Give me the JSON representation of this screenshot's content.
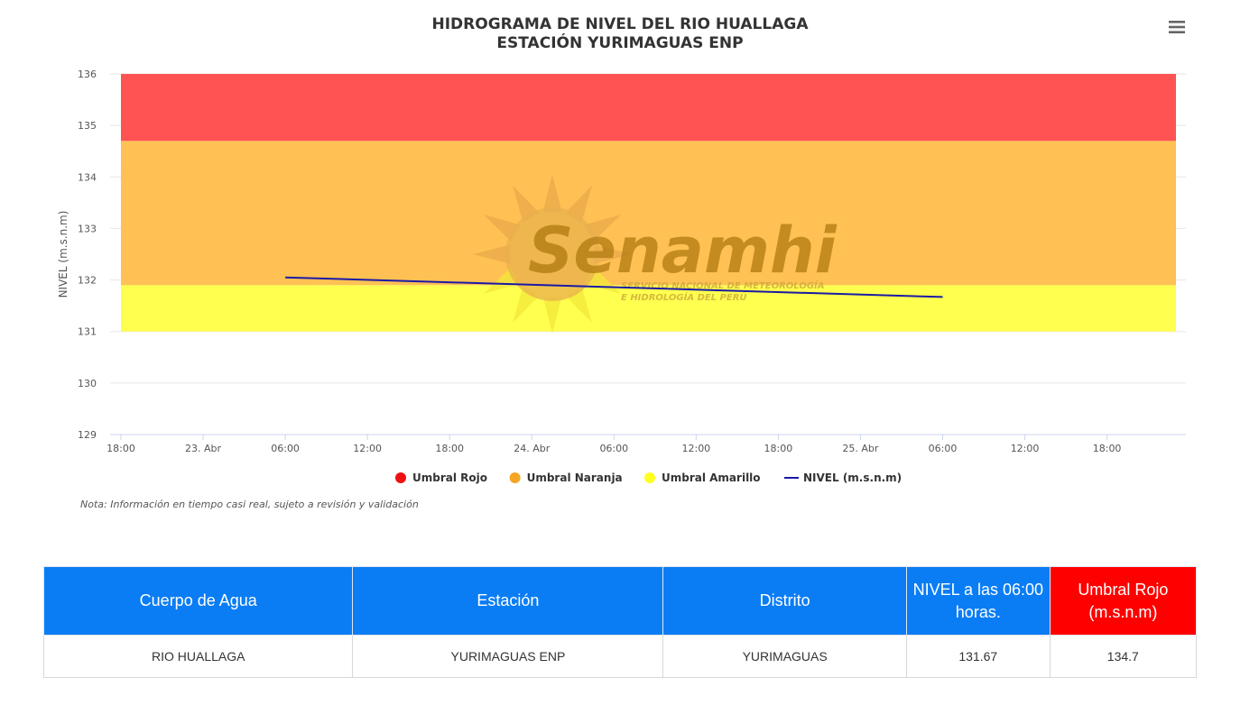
{
  "menu": {
    "icon": "hamburger-icon"
  },
  "chart_data": {
    "type": "line",
    "title": "HIDROGRAMA DE NIVEL DEL RIO HUALLAGA",
    "subtitle": "ESTACIÓN YURIMAGUAS ENP",
    "xlabel": "",
    "ylabel": "NIVEL (m.s.n.m)",
    "ylim": [
      129,
      136
    ],
    "y_ticks": [
      "129",
      "130",
      "131",
      "132",
      "133",
      "134",
      "135",
      "136"
    ],
    "x_tick_labels": [
      "18:00",
      "23. Abr",
      "06:00",
      "12:00",
      "18:00",
      "24. Abr",
      "06:00",
      "12:00",
      "18:00",
      "25. Abr",
      "06:00",
      "12:00",
      "18:00"
    ],
    "grid": true,
    "bands": [
      {
        "name": "Umbral Amarillo",
        "from": 131,
        "to": 131.9,
        "color": "#ffff4f"
      },
      {
        "name": "Umbral Naranja",
        "from": 131.9,
        "to": 134.7,
        "color": "#ffc153"
      },
      {
        "name": "Umbral Rojo",
        "from": 134.7,
        "to": 136,
        "color": "#ff5252"
      }
    ],
    "series": [
      {
        "name": "NIVEL (m.s.n.m)",
        "color": "#1a1aa6",
        "x": [
          "23. Abr 06:00",
          "25. Abr 06:00"
        ],
        "values": [
          132.05,
          131.67
        ]
      }
    ],
    "legend": {
      "placement": "bottom-center",
      "items": [
        {
          "label": "Umbral Rojo",
          "color": "#ee1111",
          "symbol": "circle"
        },
        {
          "label": "Umbral Naranja",
          "color": "#f5a623",
          "symbol": "circle"
        },
        {
          "label": "Umbral Amarillo",
          "color": "#ffff22",
          "symbol": "circle"
        },
        {
          "label": "NIVEL (m.s.n.m)",
          "color": "#1a1aa6",
          "symbol": "line"
        }
      ]
    },
    "note": "Nota: Información en tiempo casi real, sujeto a revisión y validación"
  },
  "watermark": {
    "brand": "Senamhi",
    "line1": "SERVICIO NACIONAL DE METEOROLOGÍA",
    "line2": "E HIDROLOGÍA DEL PERÚ"
  },
  "table": {
    "headers": [
      "Cuerpo de Agua",
      "Estación",
      "Distrito",
      "NIVEL a las 06:00 horas.",
      "Umbral Rojo (m.s.n.m)"
    ],
    "header_colors": [
      "#0a7df5",
      "#0a7df5",
      "#0a7df5",
      "#0a7df5",
      "#ff0000"
    ],
    "rows": [
      [
        "RIO HUALLAGA",
        "YURIMAGUAS ENP",
        "YURIMAGUAS",
        "131.67",
        "134.7"
      ]
    ]
  }
}
